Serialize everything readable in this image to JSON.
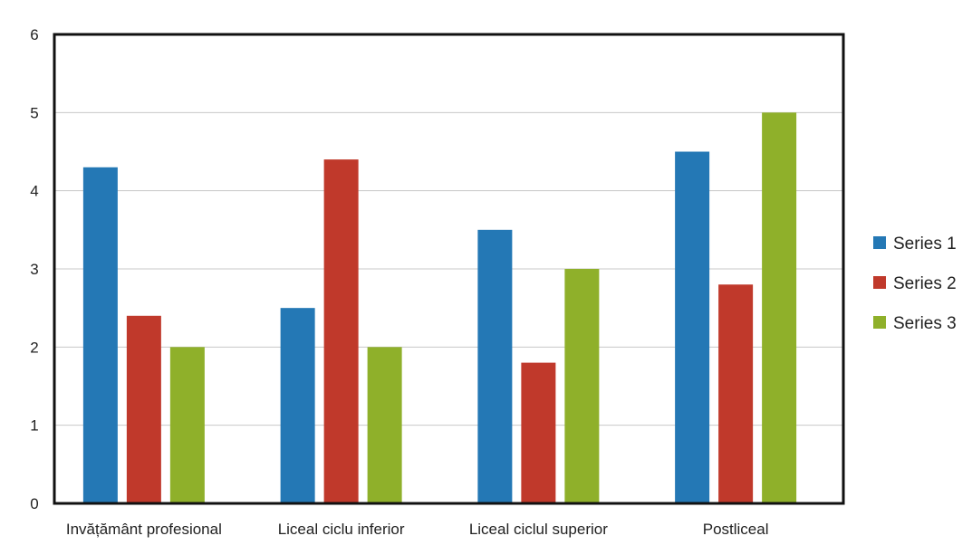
{
  "chart_data": {
    "type": "bar",
    "categories": [
      "Invățământ profesional",
      "Liceal ciclu inferior",
      "Liceal ciclul superior",
      "Postliceal"
    ],
    "series": [
      {
        "name": "Series 1",
        "color": "#2478b5",
        "values": [
          4.3,
          2.5,
          3.5,
          4.5
        ]
      },
      {
        "name": "Series 2",
        "color": "#c0392b",
        "values": [
          2.4,
          4.4,
          1.8,
          2.8
        ]
      },
      {
        "name": "Series 3",
        "color": "#8fb02a",
        "values": [
          2.0,
          2.0,
          3.0,
          5.0
        ]
      }
    ],
    "y_ticks": [
      "0",
      "1",
      "2",
      "3",
      "4",
      "5",
      "6"
    ],
    "ylim": [
      0,
      6
    ],
    "grid": true,
    "legend_position": "right"
  }
}
